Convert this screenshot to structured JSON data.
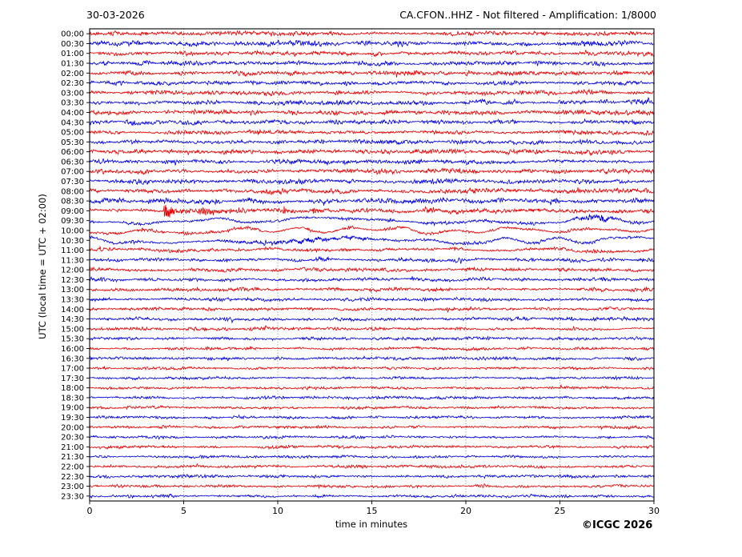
{
  "header": {
    "date": "30-03-2026",
    "title": "CA.CFON..HHZ - Not filtered - Amplification: 1/8000"
  },
  "footer": {
    "copyright": "©ICGC 2026"
  },
  "chart_data": {
    "type": "line",
    "subtype": "helicorder-dayplot",
    "date": "30-03-2026",
    "title": "CA.CFON..HHZ - Not filtered - Amplification: 1/8000",
    "station": "CA.CFON..HHZ",
    "filter": "Not filtered",
    "amplification": "1/8000",
    "xlabel": "time in minutes",
    "ylabel": "UTC (local time = UTC + 02:00)",
    "xlim": [
      0,
      30
    ],
    "x_ticks": [
      0,
      5,
      10,
      15,
      20,
      25,
      30
    ],
    "grid": {
      "vertical_at": [
        5,
        10,
        15,
        20,
        25
      ],
      "style": "dotted",
      "color": "#555555"
    },
    "minutes_per_row": 30,
    "legend": "none",
    "colors": {
      "red": "#e80000",
      "blue": "#0000e0"
    },
    "axis_color": "#000000",
    "rows": [
      {
        "label": "00:00",
        "color": "red",
        "amp": 2.6,
        "lf": 0.5
      },
      {
        "label": "00:30",
        "color": "blue",
        "amp": 2.7,
        "lf": 0.5
      },
      {
        "label": "01:00",
        "color": "red",
        "amp": 2.5,
        "lf": 0.5
      },
      {
        "label": "01:30",
        "color": "blue",
        "amp": 2.5,
        "lf": 0.5
      },
      {
        "label": "02:00",
        "color": "red",
        "amp": 2.7,
        "lf": 0.5
      },
      {
        "label": "02:30",
        "color": "blue",
        "amp": 2.4,
        "lf": 0.5
      },
      {
        "label": "03:00",
        "color": "red",
        "amp": 2.3,
        "lf": 0.5
      },
      {
        "label": "03:30",
        "color": "blue",
        "amp": 2.5,
        "lf": 0.5
      },
      {
        "label": "04:00",
        "color": "red",
        "amp": 2.5,
        "lf": 0.5
      },
      {
        "label": "04:30",
        "color": "blue",
        "amp": 2.3,
        "lf": 0.5
      },
      {
        "label": "05:00",
        "color": "red",
        "amp": 2.4,
        "lf": 0.5
      },
      {
        "label": "05:30",
        "color": "blue",
        "amp": 2.3,
        "lf": 0.5
      },
      {
        "label": "06:00",
        "color": "red",
        "amp": 2.6,
        "lf": 0.5
      },
      {
        "label": "06:30",
        "color": "blue",
        "amp": 2.5,
        "lf": 0.5
      },
      {
        "label": "07:00",
        "color": "red",
        "amp": 2.5,
        "lf": 0.5
      },
      {
        "label": "07:30",
        "color": "blue",
        "amp": 2.6,
        "lf": 0.5
      },
      {
        "label": "08:00",
        "color": "red",
        "amp": 2.7,
        "lf": 0.5
      },
      {
        "label": "08:30",
        "color": "blue",
        "amp": 2.7,
        "lf": 0.6
      },
      {
        "label": "09:00",
        "color": "red",
        "amp": 2.2,
        "lf": 0.6
      },
      {
        "label": "09:30",
        "color": "blue",
        "amp": 1.8,
        "lf": 2.2
      },
      {
        "label": "10:00",
        "color": "red",
        "amp": 1.7,
        "lf": 2.0
      },
      {
        "label": "10:30",
        "color": "blue",
        "amp": 1.8,
        "lf": 2.0
      },
      {
        "label": "11:00",
        "color": "red",
        "amp": 2.0,
        "lf": 1.0
      },
      {
        "label": "11:30",
        "color": "blue",
        "amp": 2.1,
        "lf": 0.7
      },
      {
        "label": "12:00",
        "color": "red",
        "amp": 2.0,
        "lf": 0.5
      },
      {
        "label": "12:30",
        "color": "blue",
        "amp": 2.0,
        "lf": 0.5
      },
      {
        "label": "13:00",
        "color": "red",
        "amp": 1.9,
        "lf": 0.4
      },
      {
        "label": "13:30",
        "color": "blue",
        "amp": 1.9,
        "lf": 0.4
      },
      {
        "label": "14:00",
        "color": "red",
        "amp": 1.8,
        "lf": 0.4
      },
      {
        "label": "14:30",
        "color": "blue",
        "amp": 1.8,
        "lf": 0.4
      },
      {
        "label": "15:00",
        "color": "red",
        "amp": 1.8,
        "lf": 0.4
      },
      {
        "label": "15:30",
        "color": "blue",
        "amp": 1.8,
        "lf": 0.4
      },
      {
        "label": "16:00",
        "color": "red",
        "amp": 1.7,
        "lf": 0.4
      },
      {
        "label": "16:30",
        "color": "blue",
        "amp": 1.8,
        "lf": 0.4
      },
      {
        "label": "17:00",
        "color": "red",
        "amp": 1.5,
        "lf": 0.3
      },
      {
        "label": "17:30",
        "color": "blue",
        "amp": 1.5,
        "lf": 0.3
      },
      {
        "label": "18:00",
        "color": "red",
        "amp": 1.5,
        "lf": 0.3
      },
      {
        "label": "18:30",
        "color": "blue",
        "amp": 1.6,
        "lf": 0.3
      },
      {
        "label": "19:00",
        "color": "red",
        "amp": 1.5,
        "lf": 0.3
      },
      {
        "label": "19:30",
        "color": "blue",
        "amp": 1.6,
        "lf": 0.3
      },
      {
        "label": "20:00",
        "color": "red",
        "amp": 1.6,
        "lf": 0.3
      },
      {
        "label": "20:30",
        "color": "blue",
        "amp": 1.6,
        "lf": 0.3
      },
      {
        "label": "21:00",
        "color": "red",
        "amp": 1.6,
        "lf": 0.3
      },
      {
        "label": "21:30",
        "color": "blue",
        "amp": 1.6,
        "lf": 0.3
      },
      {
        "label": "22:00",
        "color": "red",
        "amp": 1.7,
        "lf": 0.3
      },
      {
        "label": "22:30",
        "color": "blue",
        "amp": 1.7,
        "lf": 0.3
      },
      {
        "label": "23:00",
        "color": "red",
        "amp": 1.7,
        "lf": 0.3
      },
      {
        "label": "23:30",
        "color": "blue",
        "amp": 1.7,
        "lf": 0.3
      }
    ],
    "events": [
      {
        "row": 18,
        "shape": "burst",
        "t0": 3.95,
        "t1": 5.6,
        "peak": 11.0,
        "freq": 16,
        "description": "main seismic burst on 09:00 trace near minute 4"
      },
      {
        "row": 18,
        "shape": "burst",
        "t0": 5.6,
        "t1": 12.5,
        "peak": 4.2,
        "freq": 10,
        "description": "event coda"
      },
      {
        "row": 18,
        "shape": "burst",
        "t0": 10.25,
        "t1": 11.2,
        "peak": 6.0,
        "freq": 13,
        "description": "secondary burst"
      },
      {
        "row": 18,
        "shape": "burst",
        "t0": 11.85,
        "t1": 12.8,
        "peak": 4.0,
        "freq": 13,
        "description": "secondary burst"
      },
      {
        "row": 18,
        "shape": "swell",
        "t0": 12.5,
        "t1": 30,
        "peak": 1.6,
        "freq": 2.5,
        "description": "elevated tail of 09:00 trace"
      },
      {
        "row": 19,
        "shape": "swell",
        "t0": 25.5,
        "t1": 28.5,
        "peak": 4.5,
        "freq": 0.9,
        "description": "low-frequency swell on 09:30 trace"
      },
      {
        "row": 21,
        "shape": "swell",
        "t0": 6,
        "t1": 17,
        "peak": 2.6,
        "freq": 1.5,
        "description": "oscillatory section on 10:30 trace"
      }
    ]
  }
}
